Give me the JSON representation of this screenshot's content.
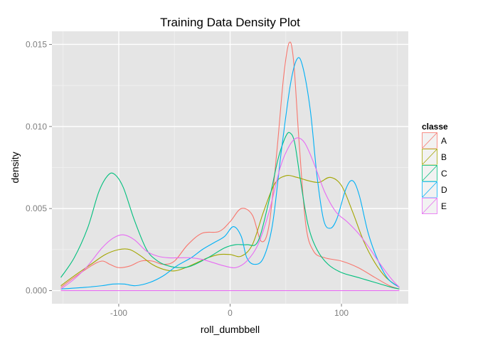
{
  "chart_data": {
    "type": "line",
    "title": "Training Data Density Plot",
    "xlabel": "roll_dumbbell",
    "ylabel": "density",
    "xlim": [
      -160,
      160
    ],
    "ylim": [
      -0.0008,
      0.0158
    ],
    "x_ticks": [
      -100,
      0,
      100
    ],
    "x_tick_labels": [
      "-100",
      "0",
      "100"
    ],
    "y_ticks": [
      0,
      0.005,
      0.01,
      0.015
    ],
    "y_tick_labels": [
      "0.000",
      "0.005",
      "0.010",
      "0.015"
    ],
    "grid": true,
    "legend": {
      "title": "classe",
      "placement": "right"
    },
    "colors": {
      "A": "#F8766D",
      "B": "#A3A500",
      "C": "#00BF7D",
      "D": "#00B0F6",
      "E": "#E76BF3"
    },
    "series": [
      {
        "name": "A",
        "points": [
          [
            -152,
            0.0002
          ],
          [
            -140,
            0.0008
          ],
          [
            -125,
            0.0015
          ],
          [
            -115,
            0.0018
          ],
          [
            -108,
            0.0016
          ],
          [
            -100,
            0.0014
          ],
          [
            -90,
            0.0015
          ],
          [
            -80,
            0.0018
          ],
          [
            -70,
            0.0018
          ],
          [
            -60,
            0.0016
          ],
          [
            -50,
            0.0018
          ],
          [
            -38,
            0.0028
          ],
          [
            -25,
            0.0035
          ],
          [
            -10,
            0.0036
          ],
          [
            0,
            0.0042
          ],
          [
            10,
            0.005
          ],
          [
            20,
            0.0046
          ],
          [
            28,
            0.003
          ],
          [
            35,
            0.004
          ],
          [
            42,
            0.0085
          ],
          [
            48,
            0.013
          ],
          [
            53,
            0.0151
          ],
          [
            57,
            0.014
          ],
          [
            62,
            0.009
          ],
          [
            68,
            0.004
          ],
          [
            75,
            0.0024
          ],
          [
            85,
            0.002
          ],
          [
            100,
            0.0018
          ],
          [
            115,
            0.0014
          ],
          [
            130,
            0.0008
          ],
          [
            143,
            0.0003
          ],
          [
            152,
            0.0001
          ]
        ]
      },
      {
        "name": "B",
        "points": [
          [
            -152,
            0.0003
          ],
          [
            -140,
            0.0009
          ],
          [
            -125,
            0.0016
          ],
          [
            -112,
            0.0022
          ],
          [
            -100,
            0.0025
          ],
          [
            -90,
            0.0025
          ],
          [
            -80,
            0.0021
          ],
          [
            -70,
            0.0016
          ],
          [
            -60,
            0.0013
          ],
          [
            -50,
            0.0012
          ],
          [
            -40,
            0.0014
          ],
          [
            -30,
            0.0017
          ],
          [
            -20,
            0.002
          ],
          [
            -10,
            0.0022
          ],
          [
            0,
            0.0022
          ],
          [
            10,
            0.0021
          ],
          [
            20,
            0.0028
          ],
          [
            30,
            0.0048
          ],
          [
            40,
            0.0065
          ],
          [
            50,
            0.007
          ],
          [
            60,
            0.0069
          ],
          [
            70,
            0.0067
          ],
          [
            80,
            0.0066
          ],
          [
            90,
            0.0069
          ],
          [
            100,
            0.0064
          ],
          [
            110,
            0.0048
          ],
          [
            120,
            0.003
          ],
          [
            130,
            0.0017
          ],
          [
            140,
            0.0008
          ],
          [
            152,
            0.0002
          ]
        ]
      },
      {
        "name": "C",
        "points": [
          [
            -152,
            0.0008
          ],
          [
            -140,
            0.002
          ],
          [
            -128,
            0.0038
          ],
          [
            -118,
            0.006
          ],
          [
            -110,
            0.007
          ],
          [
            -104,
            0.0071
          ],
          [
            -96,
            0.0063
          ],
          [
            -86,
            0.0043
          ],
          [
            -75,
            0.0025
          ],
          [
            -65,
            0.0018
          ],
          [
            -55,
            0.0015
          ],
          [
            -45,
            0.0014
          ],
          [
            -35,
            0.0015
          ],
          [
            -20,
            0.002
          ],
          [
            -5,
            0.0026
          ],
          [
            5,
            0.0028
          ],
          [
            15,
            0.0028
          ],
          [
            25,
            0.003
          ],
          [
            35,
            0.0055
          ],
          [
            43,
            0.008
          ],
          [
            50,
            0.0094
          ],
          [
            54,
            0.0096
          ],
          [
            58,
            0.009
          ],
          [
            63,
            0.0068
          ],
          [
            70,
            0.004
          ],
          [
            78,
            0.0025
          ],
          [
            88,
            0.0016
          ],
          [
            100,
            0.0011
          ],
          [
            115,
            0.0008
          ],
          [
            130,
            0.0005
          ],
          [
            145,
            0.0002
          ],
          [
            152,
            0.0001
          ]
        ]
      },
      {
        "name": "D",
        "points": [
          [
            -152,
            0.0001
          ],
          [
            -130,
            0.0002
          ],
          [
            -115,
            0.0003
          ],
          [
            -105,
            0.0004
          ],
          [
            -95,
            0.0004
          ],
          [
            -85,
            0.0003
          ],
          [
            -72,
            0.0005
          ],
          [
            -60,
            0.0009
          ],
          [
            -48,
            0.0015
          ],
          [
            -35,
            0.002
          ],
          [
            -25,
            0.0025
          ],
          [
            -15,
            0.0029
          ],
          [
            -5,
            0.0033
          ],
          [
            3,
            0.0039
          ],
          [
            10,
            0.0033
          ],
          [
            15,
            0.002
          ],
          [
            22,
            0.0016
          ],
          [
            30,
            0.002
          ],
          [
            38,
            0.004
          ],
          [
            46,
            0.0085
          ],
          [
            54,
            0.0125
          ],
          [
            60,
            0.0141
          ],
          [
            65,
            0.0137
          ],
          [
            72,
            0.011
          ],
          [
            78,
            0.007
          ],
          [
            84,
            0.0043
          ],
          [
            90,
            0.0038
          ],
          [
            96,
            0.0044
          ],
          [
            104,
            0.0062
          ],
          [
            110,
            0.0067
          ],
          [
            116,
            0.0058
          ],
          [
            124,
            0.0035
          ],
          [
            133,
            0.0018
          ],
          [
            142,
            0.0007
          ],
          [
            152,
            0.0002
          ]
        ]
      },
      {
        "name": "E",
        "points": [
          [
            -152,
            0.0001
          ],
          [
            -140,
            0.0007
          ],
          [
            -128,
            0.0015
          ],
          [
            -115,
            0.0026
          ],
          [
            -105,
            0.0032
          ],
          [
            -96,
            0.0034
          ],
          [
            -86,
            0.0031
          ],
          [
            -75,
            0.0024
          ],
          [
            -65,
            0.0021
          ],
          [
            -55,
            0.002
          ],
          [
            -45,
            0.002
          ],
          [
            -35,
            0.002
          ],
          [
            -25,
            0.0019
          ],
          [
            -15,
            0.0017
          ],
          [
            -5,
            0.0015
          ],
          [
            5,
            0.0014
          ],
          [
            15,
            0.0018
          ],
          [
            25,
            0.0028
          ],
          [
            35,
            0.0048
          ],
          [
            45,
            0.0075
          ],
          [
            53,
            0.0088
          ],
          [
            60,
            0.0093
          ],
          [
            67,
            0.009
          ],
          [
            75,
            0.0078
          ],
          [
            85,
            0.006
          ],
          [
            95,
            0.0048
          ],
          [
            105,
            0.0042
          ],
          [
            115,
            0.0035
          ],
          [
            125,
            0.0026
          ],
          [
            135,
            0.0016
          ],
          [
            145,
            0.0007
          ],
          [
            152,
            0.0002
          ]
        ]
      },
      {
        "name": "E",
        "points": [
          [
            -152,
            0.0
          ],
          [
            152,
            0.0
          ]
        ]
      }
    ]
  }
}
